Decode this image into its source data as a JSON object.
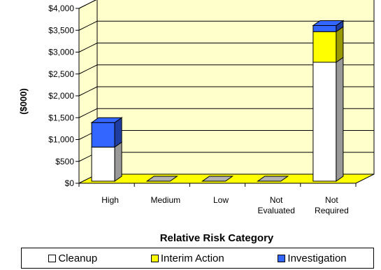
{
  "chart_data": {
    "type": "bar",
    "stacked": true,
    "three_d": true,
    "categories": [
      "High",
      "Medium",
      "Low",
      "Not Evaluated",
      "Not Required"
    ],
    "category_lines": [
      [
        "High"
      ],
      [
        "Medium"
      ],
      [
        "Low"
      ],
      [
        "Not",
        "Evaluated"
      ],
      [
        "Not",
        "Required"
      ]
    ],
    "series": [
      {
        "name": "Cleanup",
        "color": "#ffffff",
        "values": [
          780,
          0,
          0,
          0,
          2720
        ]
      },
      {
        "name": "Interim Action",
        "color": "#ffff00",
        "values": [
          0,
          0,
          0,
          0,
          700
        ]
      },
      {
        "name": "Investigation",
        "color": "#3366ff",
        "values": [
          560,
          0,
          0,
          0,
          140
        ]
      }
    ],
    "ylabel": "($000)",
    "xlabel": "Relative Risk Category",
    "ylim": [
      0,
      4000
    ],
    "yticks": [
      "$0",
      "$500",
      "$1,000",
      "$1,500",
      "$2,000",
      "$2,500",
      "$3,000",
      "$3,500",
      "$4,000"
    ],
    "plot_background": "#ffffcc",
    "floor_color": "#ffff00",
    "grid": true,
    "legend_position": "bottom"
  }
}
